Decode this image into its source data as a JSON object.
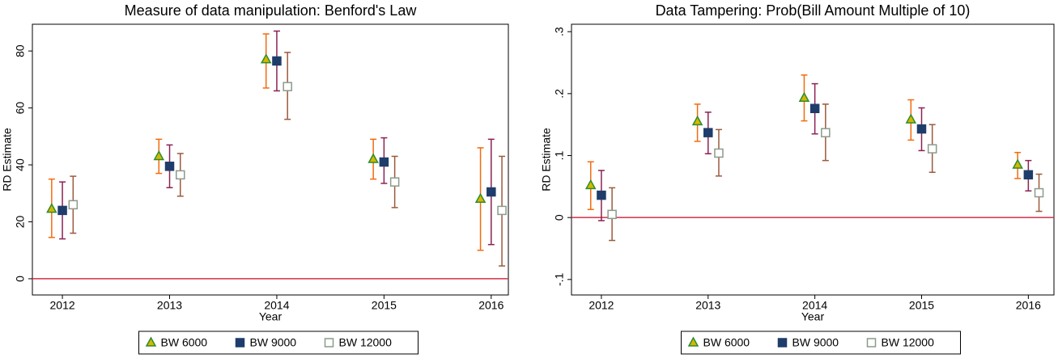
{
  "chart_data": [
    {
      "type": "scatter",
      "title": "Measure of data manipulation: Benford's Law",
      "x_label": "Year",
      "y_label": "RD Estimate",
      "x": [
        2012,
        2013,
        2014,
        2015,
        2016
      ],
      "xlim": [
        2011.72,
        2016.16
      ],
      "xticks": [
        2012,
        2013,
        2014,
        2015,
        2016
      ],
      "ylim": [
        -5.7,
        89.4
      ],
      "yticks": [
        0,
        20,
        40,
        60,
        80
      ],
      "hline": 0,
      "hline_color": "#d0304a",
      "legend": "bottom",
      "series": [
        {
          "name": "BW 6000",
          "marker": "triangle",
          "color": "#2e8b2e",
          "fill_color": "#d4b800",
          "error_color": "#f26b0f",
          "values": [
            24.5,
            43,
            77,
            42,
            28
          ],
          "lower": [
            14.5,
            37,
            67,
            35,
            10
          ],
          "upper": [
            35,
            49,
            86,
            49,
            46
          ]
        },
        {
          "name": "BW 9000",
          "marker": "square",
          "color": "#1f3d6b",
          "fill_color": "#1f3d6b",
          "error_color": "#8b2252",
          "values": [
            24,
            39.5,
            76.5,
            41,
            30.5
          ],
          "lower": [
            14,
            32,
            66,
            33.5,
            12
          ],
          "upper": [
            34,
            47,
            87,
            49.5,
            49
          ]
        },
        {
          "name": "BW 12000",
          "marker": "square",
          "color": "#8c9a8c",
          "fill_color": "#ffffff",
          "error_color": "#9c5a3c",
          "values": [
            26,
            36.5,
            67.5,
            34,
            24
          ],
          "lower": [
            16,
            29,
            56,
            25,
            4.5
          ],
          "upper": [
            36,
            44,
            79.5,
            43,
            43
          ]
        }
      ]
    },
    {
      "type": "scatter",
      "title": "Data Tampering: Prob(Bill Amount Multiple of 10)",
      "x_label": "Year",
      "y_label": "RD Estimate",
      "x": [
        2012,
        2013,
        2014,
        2015,
        2016
      ],
      "xlim": [
        2011.72,
        2016.24
      ],
      "xticks": [
        2012,
        2013,
        2014,
        2015,
        2016
      ],
      "ylim": [
        -0.125,
        0.312
      ],
      "yticks": [
        {
          "value": -0.1,
          "label": "-.1"
        },
        0,
        {
          "value": 0.1,
          "label": ".1"
        },
        {
          "value": 0.2,
          "label": ".2"
        },
        {
          "value": 0.3,
          "label": ".3"
        }
      ],
      "hline": 0,
      "hline_color": "#d0304a",
      "legend": "bottom",
      "series": [
        {
          "name": "BW 6000",
          "marker": "triangle",
          "color": "#2e8b2e",
          "fill_color": "#d4b800",
          "error_color": "#f26b0f",
          "values": [
            0.052,
            0.155,
            0.193,
            0.158,
            0.085
          ],
          "lower": [
            0.013,
            0.123,
            0.156,
            0.125,
            0.063
          ],
          "upper": [
            0.09,
            0.183,
            0.23,
            0.19,
            0.105
          ]
        },
        {
          "name": "BW 9000",
          "marker": "square",
          "color": "#1f3d6b",
          "fill_color": "#1f3d6b",
          "error_color": "#8b2252",
          "values": [
            0.036,
            0.137,
            0.176,
            0.143,
            0.069
          ],
          "lower": [
            -0.005,
            0.103,
            0.135,
            0.108,
            0.043
          ],
          "upper": [
            0.076,
            0.17,
            0.216,
            0.177,
            0.092
          ]
        },
        {
          "name": "BW 12000",
          "marker": "square",
          "color": "#8c9a8c",
          "fill_color": "#ffffff",
          "error_color": "#9c5a3c",
          "values": [
            0.005,
            0.104,
            0.137,
            0.111,
            0.04
          ],
          "lower": [
            -0.037,
            0.067,
            0.092,
            0.073,
            0.01
          ],
          "upper": [
            0.048,
            0.142,
            0.183,
            0.15,
            0.07
          ]
        }
      ]
    }
  ]
}
